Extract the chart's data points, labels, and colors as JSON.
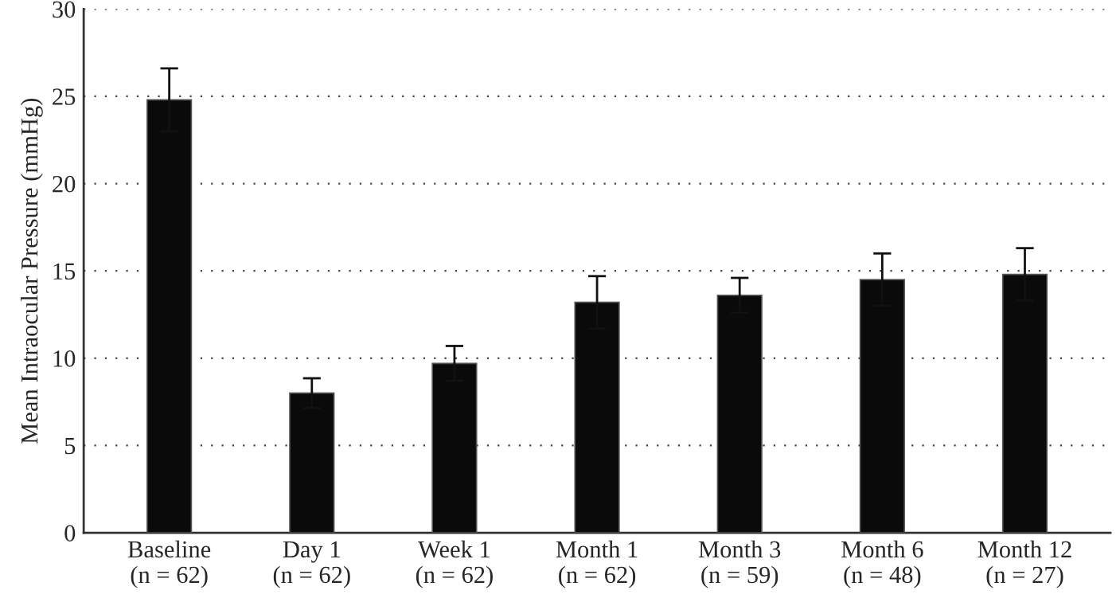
{
  "chart_data": {
    "type": "bar",
    "ylabel": "Mean Intraocular Pressure (mmHg)",
    "categories": [
      "Baseline\n(n = 62)",
      "Day 1\n(n = 62)",
      "Week 1\n(n = 62)",
      "Month 1\n(n = 62)",
      "Month 3\n(n = 59)",
      "Month 6\n(n = 48)",
      "Month 12\n(n = 27)"
    ],
    "values": [
      24.8,
      8.0,
      9.7,
      13.2,
      13.6,
      14.5,
      14.8
    ],
    "errors": [
      1.8,
      0.85,
      1.0,
      1.5,
      1.0,
      1.5,
      1.5
    ],
    "color": "#0a0a0a",
    "ylim": [
      0,
      30
    ],
    "yticks": [
      0,
      5,
      10,
      15,
      20,
      25,
      30
    ],
    "grid": "y"
  }
}
